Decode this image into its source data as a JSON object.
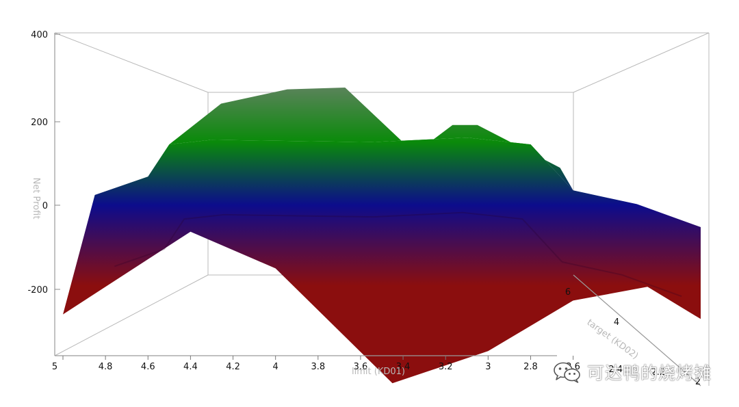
{
  "chart_data": {
    "type": "surface3d",
    "zlabel": "Net Profit",
    "xlabel": "limit (KD01)",
    "ylabel": "target (KD02)",
    "z_ticks": [
      "400",
      "200",
      "0",
      "-200"
    ],
    "zlim": [
      -300,
      400
    ],
    "x_ticks": [
      "5",
      "4.8",
      "4.6",
      "4.4",
      "4.2",
      "4",
      "3.8",
      "3.6",
      "3.4",
      "3.2",
      "3",
      "2.8",
      "2.6",
      "2.4",
      "2.2",
      "2"
    ],
    "y_ticks": [
      "6",
      "4"
    ],
    "color_scale": [
      "#8b0e0e",
      "#0c0c8c",
      "#0a8a0a",
      "#808080"
    ],
    "surface": {
      "back_edge": [
        {
          "x": 4.5,
          "z": 290
        },
        {
          "x": 4.1,
          "z": 330
        },
        {
          "x": 3.75,
          "z": 335
        },
        {
          "x": 3.35,
          "z": 160
        },
        {
          "x": 3.3,
          "z": 160
        },
        {
          "x": 3.1,
          "z": 230
        },
        {
          "x": 2.95,
          "z": 230
        },
        {
          "x": 2.7,
          "z": 170
        },
        {
          "x": 2.45,
          "z": 110
        }
      ],
      "mid_edge": [
        {
          "x": 4.85,
          "z": 50
        },
        {
          "x": 4.6,
          "z": 90
        },
        {
          "x": 4.5,
          "z": 160
        },
        {
          "x": 4.3,
          "z": 170
        },
        {
          "x": 3.55,
          "z": 165
        },
        {
          "x": 3.1,
          "z": 175
        },
        {
          "x": 2.8,
          "z": 160
        },
        {
          "x": 2.6,
          "z": 60
        },
        {
          "x": 2.3,
          "z": 30
        },
        {
          "x": 2.0,
          "z": -20
        }
      ],
      "front_edge": [
        {
          "x": 5.0,
          "z": -210
        },
        {
          "x": 4.4,
          "z": -30
        },
        {
          "x": 4.0,
          "z": -110
        },
        {
          "x": 3.45,
          "z": -360
        },
        {
          "x": 3.0,
          "z": -290
        },
        {
          "x": 2.6,
          "z": -180
        },
        {
          "x": 2.25,
          "z": -150
        },
        {
          "x": 2.0,
          "z": -220
        }
      ]
    }
  },
  "watermark": {
    "text": "可达鸭的烧烤摊",
    "icon": "wechat-icon"
  }
}
